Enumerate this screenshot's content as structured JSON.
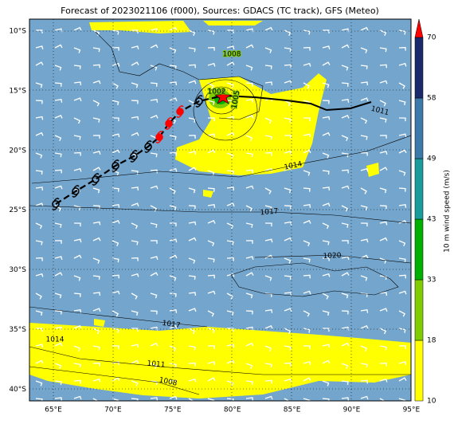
{
  "map": {
    "title": "Forecast of 2023021106 (f000), Sources: GDACS (TC track), GFS (Meteo)",
    "lat_labels": [
      "10°S",
      "15°S",
      "20°S",
      "25°S",
      "30°S",
      "35°S",
      "40°S"
    ],
    "lon_labels": [
      "65°E",
      "70°E",
      "75°E",
      "80°E",
      "85°E",
      "90°E",
      "95°E"
    ],
    "isobar_labels": [
      "1008",
      "1002",
      "1005",
      "1011",
      "1014",
      "1017",
      "1020",
      "1017",
      "1014",
      "1011",
      "1008"
    ],
    "colorbar": {
      "label": "10 m wind speed (m/s)",
      "ticks": [
        "10",
        "18",
        "33",
        "43",
        "49",
        "58",
        "70"
      ],
      "colors": [
        "#ffff00",
        "#80cc00",
        "#00b000",
        "#1a9c9c",
        "#3d79a9",
        "#1b2a6b"
      ],
      "extend_color": "#ff0000"
    }
  }
}
